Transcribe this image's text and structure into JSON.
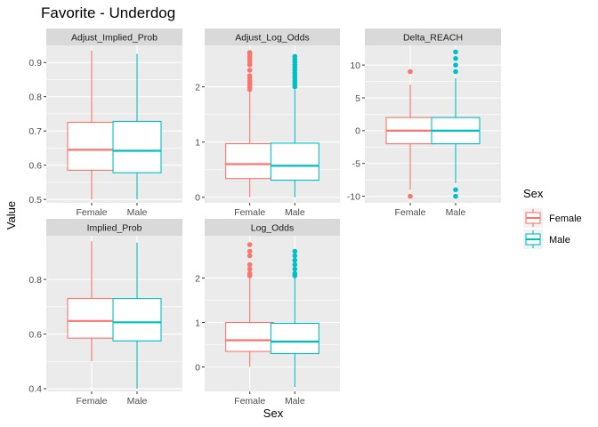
{
  "colors": {
    "Female": "#F8766D",
    "Male": "#00BFC4",
    "panel_bg": "#EBEBEB",
    "strip_bg": "#D9D9D9",
    "grid": "#FFFFFF"
  },
  "chart_data": {
    "type": "boxplot",
    "title": "Favorite - Underdog",
    "xlabel": "Sex",
    "ylabel": "Value",
    "categories": [
      "Female",
      "Male"
    ],
    "legend": {
      "title": "Sex",
      "entries": [
        "Female",
        "Male"
      ],
      "placement": "right"
    },
    "facets": [
      {
        "name": "Adjust_Implied_Prob",
        "ylim": [
          0.49,
          0.95
        ],
        "yticks": [
          0.5,
          0.6,
          0.7,
          0.8,
          0.9
        ],
        "ytick_labels": [
          "0.5",
          "0.6",
          "0.7",
          "0.8",
          "0.9"
        ],
        "boxes": [
          {
            "group": "Female",
            "whisker_low": 0.5,
            "q1": 0.585,
            "median": 0.645,
            "q3": 0.725,
            "whisker_high": 0.935,
            "outliers": []
          },
          {
            "group": "Male",
            "whisker_low": 0.5,
            "q1": 0.578,
            "median": 0.642,
            "q3": 0.728,
            "whisker_high": 0.925,
            "outliers": []
          }
        ]
      },
      {
        "name": "Adjust_Log_Odds",
        "ylim": [
          -0.1,
          2.75
        ],
        "yticks": [
          0,
          1,
          2
        ],
        "ytick_labels": [
          "0",
          "1",
          "2"
        ],
        "boxes": [
          {
            "group": "Female",
            "whisker_low": 0.0,
            "q1": 0.34,
            "median": 0.6,
            "q3": 0.97,
            "whisker_high": 1.9,
            "outliers": [
              1.95,
              2.0,
              2.05,
              2.1,
              2.15,
              2.2,
              2.3,
              2.4,
              2.45,
              2.5,
              2.55,
              2.6,
              2.62
            ]
          },
          {
            "group": "Male",
            "whisker_low": 0.0,
            "q1": 0.31,
            "median": 0.57,
            "q3": 0.98,
            "whisker_high": 1.95,
            "outliers": [
              2.0,
              2.05,
              2.1,
              2.15,
              2.2,
              2.25,
              2.3,
              2.35,
              2.4,
              2.45,
              2.5,
              2.55
            ]
          }
        ]
      },
      {
        "name": "Delta_REACH",
        "ylim": [
          -11,
          13
        ],
        "yticks": [
          -10,
          -5,
          0,
          5,
          10
        ],
        "ytick_labels": [
          "-10",
          "-5",
          "0",
          "5",
          "10"
        ],
        "boxes": [
          {
            "group": "Female",
            "whisker_low": -9,
            "q1": -2,
            "median": 0,
            "q3": 2,
            "whisker_high": 7,
            "outliers": [
              9,
              -10
            ]
          },
          {
            "group": "Male",
            "whisker_low": -8,
            "q1": -2,
            "median": 0,
            "q3": 2,
            "whisker_high": 8,
            "outliers": [
              9,
              10,
              11,
              12,
              -9,
              -10
            ]
          }
        ]
      },
      {
        "name": "Implied_Prob",
        "ylim": [
          0.39,
          0.96
        ],
        "yticks": [
          0.4,
          0.6,
          0.8
        ],
        "ytick_labels": [
          "0.4",
          "0.6",
          "0.8"
        ],
        "boxes": [
          {
            "group": "Female",
            "whisker_low": 0.5,
            "q1": 0.585,
            "median": 0.648,
            "q3": 0.73,
            "whisker_high": 0.94,
            "outliers": []
          },
          {
            "group": "Male",
            "whisker_low": 0.4,
            "q1": 0.575,
            "median": 0.643,
            "q3": 0.73,
            "whisker_high": 0.935,
            "outliers": []
          }
        ]
      },
      {
        "name": "Log_Odds",
        "ylim": [
          -0.55,
          2.95
        ],
        "yticks": [
          0,
          1,
          2
        ],
        "ytick_labels": [
          "0",
          "1",
          "2"
        ],
        "boxes": [
          {
            "group": "Female",
            "whisker_low": 0.0,
            "q1": 0.35,
            "median": 0.6,
            "q3": 1.0,
            "whisker_high": 2.0,
            "outliers": [
              2.05,
              2.1,
              2.2,
              2.3,
              2.5,
              2.6,
              2.75
            ]
          },
          {
            "group": "Male",
            "whisker_low": -0.45,
            "q1": 0.3,
            "median": 0.57,
            "q3": 0.98,
            "whisker_high": 2.0,
            "outliers": [
              2.05,
              2.1,
              2.2,
              2.3,
              2.4,
              2.5,
              2.6
            ]
          }
        ]
      }
    ]
  }
}
